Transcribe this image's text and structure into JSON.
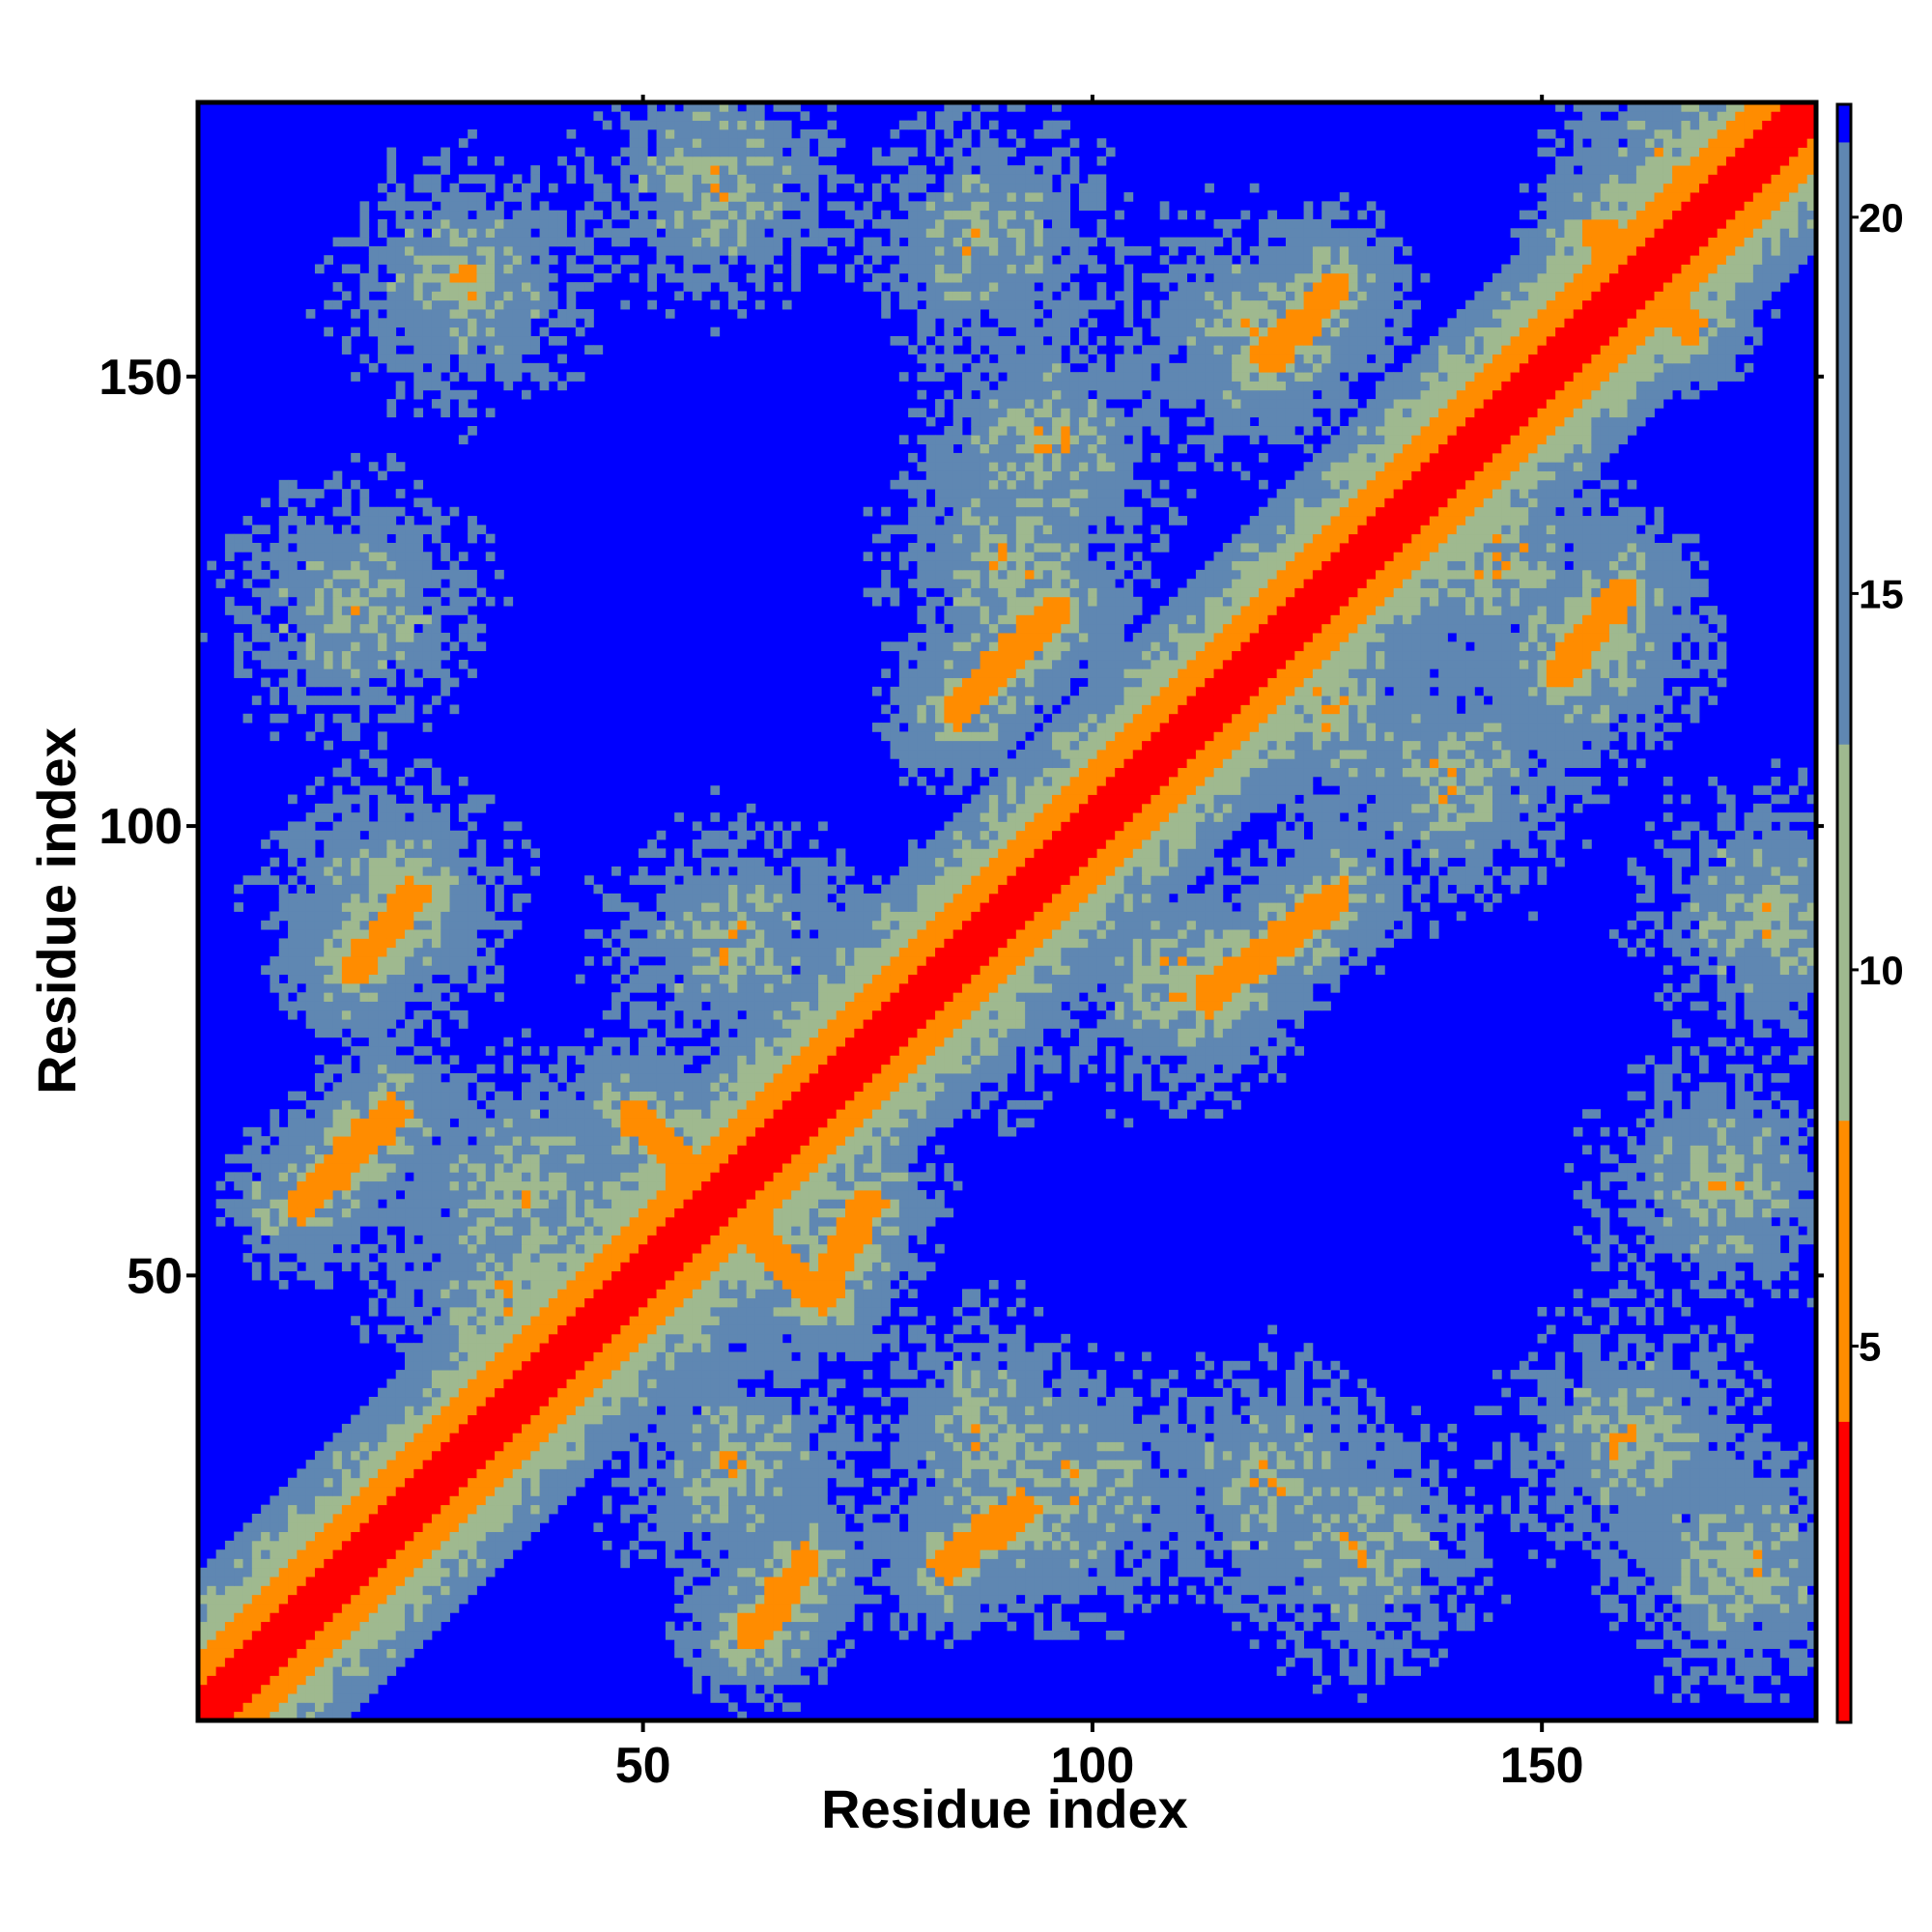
{
  "chart_data": {
    "type": "heatmap",
    "title": "",
    "xlabel": "Residue index",
    "ylabel": "Residue index",
    "n_residues": 180,
    "xlim": [
      1,
      180
    ],
    "ylim": [
      1,
      180
    ],
    "x_ticks": [
      "50",
      "100",
      "150"
    ],
    "y_ticks": [
      "50",
      "100",
      "150"
    ],
    "colorbar": {
      "ticks": [
        "5",
        "10",
        "15",
        "20"
      ],
      "range": [
        0,
        21.5
      ],
      "colors": {
        "red": "#ff0000",
        "orange": "#ff8c00",
        "sage": "#9fb98f",
        "steel": "#5f87b2",
        "blue": "#0000ff"
      },
      "bands": [
        {
          "color": "red",
          "from": 0,
          "to": 4
        },
        {
          "color": "orange",
          "from": 4,
          "to": 8
        },
        {
          "color": "sage",
          "from": 8,
          "to": 13
        },
        {
          "color": "steel",
          "from": 13,
          "to": 21
        },
        {
          "color": "blue",
          "from": 21,
          "to": 21.5
        }
      ]
    },
    "diagonal": {
      "core": 4,
      "band": 9,
      "halo": 16
    },
    "contact_features": [
      {
        "type": "parallel",
        "i1": 12,
        "j1": 58,
        "i2": 22,
        "j2": 68
      },
      {
        "type": "parallel",
        "i1": 18,
        "j1": 84,
        "i2": 24,
        "j2": 92
      },
      {
        "type": "parallel",
        "i1": 62,
        "j1": 10,
        "i2": 68,
        "j2": 18
      },
      {
        "type": "parallel",
        "i1": 70,
        "j1": 48,
        "i2": 75,
        "j2": 58
      },
      {
        "type": "parallel",
        "i1": 84,
        "j1": 18,
        "i2": 92,
        "j2": 24
      },
      {
        "type": "parallel",
        "i1": 85,
        "j1": 113,
        "i2": 96,
        "j2": 124
      },
      {
        "type": "parallel",
        "i1": 113,
        "j1": 81,
        "i2": 127,
        "j2": 92
      },
      {
        "type": "parallel",
        "i1": 120,
        "j1": 152,
        "i2": 127,
        "j2": 160
      },
      {
        "type": "parallel",
        "i1": 152,
        "j1": 117,
        "i2": 159,
        "j2": 126
      },
      {
        "type": "antiparallel",
        "i1": 49,
        "j1": 68,
        "i2": 68,
        "j2": 49
      },
      {
        "type": "antiparallel",
        "i1": 156,
        "j1": 166,
        "i2": 166,
        "j2": 156
      },
      {
        "type": "blob",
        "i": 22,
        "j": 92
      },
      {
        "type": "blob",
        "i": 18,
        "j": 125
      },
      {
        "type": "blob",
        "i": 30,
        "j": 160
      },
      {
        "type": "blob",
        "i": 35,
        "j": 48
      },
      {
        "type": "blob",
        "i": 37,
        "j": 60
      },
      {
        "type": "blob",
        "i": 52,
        "j": 48
      },
      {
        "type": "blob",
        "i": 60,
        "j": 29
      },
      {
        "type": "blob",
        "i": 60,
        "j": 87
      },
      {
        "type": "blob",
        "i": 58,
        "j": 172
      },
      {
        "type": "blob",
        "i": 62,
        "j": 57
      },
      {
        "type": "blob",
        "i": 84,
        "j": 81
      },
      {
        "type": "blob",
        "i": 88,
        "j": 32
      },
      {
        "type": "blob",
        "i": 88,
        "j": 165
      },
      {
        "type": "blob",
        "i": 91,
        "j": 130
      },
      {
        "type": "blob",
        "i": 95,
        "j": 143
      },
      {
        "type": "blob",
        "i": 98,
        "j": 26
      },
      {
        "type": "blob",
        "i": 110,
        "j": 83
      },
      {
        "type": "blob",
        "i": 118,
        "j": 155
      },
      {
        "type": "blob",
        "i": 120,
        "j": 27
      },
      {
        "type": "blob",
        "i": 126,
        "j": 113
      },
      {
        "type": "blob",
        "i": 130,
        "j": 20
      },
      {
        "type": "blob",
        "i": 140,
        "j": 105
      },
      {
        "type": "blob",
        "i": 145,
        "j": 130
      },
      {
        "type": "blob",
        "i": 160,
        "j": 32
      },
      {
        "type": "blob",
        "i": 155,
        "j": 120
      },
      {
        "type": "blob",
        "i": 165,
        "j": 173
      },
      {
        "type": "blob",
        "i": 170,
        "j": 60
      },
      {
        "type": "blob",
        "i": 172,
        "j": 18
      },
      {
        "type": "blob",
        "i": 175,
        "j": 90
      }
    ]
  }
}
